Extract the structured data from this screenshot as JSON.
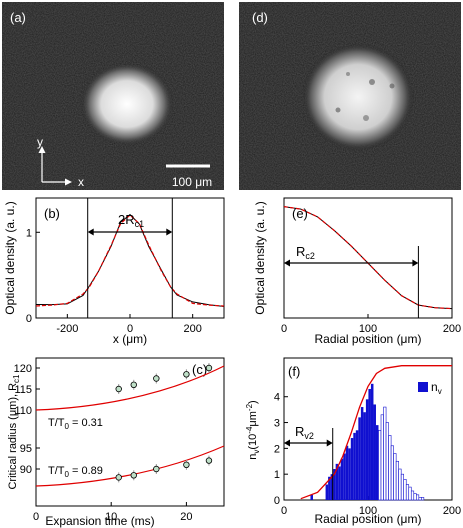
{
  "panel_a": {
    "tag": "(a)",
    "axis_y": "y",
    "axis_x": "x",
    "scalebar": "100 μm"
  },
  "panel_d": {
    "tag": "(d)"
  },
  "panel_b": {
    "tag": "(b)",
    "ylabel": "Optical density (a. u.)",
    "xlabel": "x (μm)",
    "marker": "2R",
    "marker_sub": "c1",
    "xticks": [
      "-200",
      "0",
      "200"
    ],
    "yticks": [
      "0",
      "1"
    ]
  },
  "panel_e": {
    "tag": "(e)",
    "ylabel": "Optical density (a. u.)",
    "xlabel": "Radial position (μm)",
    "marker": "R",
    "marker_sub": "c2",
    "xticks": [
      "0",
      "100",
      "200"
    ]
  },
  "panel_c": {
    "tag": "(c)",
    "ylabel": "Critical radius (μm), R",
    "ylabel_sub": "c1",
    "xlabel": "Expansion time (ms)",
    "xticks": [
      "0",
      "10",
      "20"
    ],
    "yticks": [
      "90",
      "95",
      "110",
      "115",
      "120"
    ],
    "note_top": "T/T",
    "note_top_sub": "0",
    "note_top_val": " = 0.31",
    "note_bot": "T/T",
    "note_bot_sub": "0",
    "note_bot_val": " = 0.89"
  },
  "panel_f": {
    "tag": "(f)",
    "ylabel": "n",
    "ylabel_sub": "v",
    "ylabel_unit": "(10",
    "ylabel_exp": "-4",
    "ylabel_unit2": "μm",
    "ylabel_exp2": "-2",
    "ylabel_close": ")",
    "xlabel": "Radial position (μm)",
    "xticks": [
      "0",
      "100",
      "200"
    ],
    "yticks": [
      "0",
      "1",
      "2",
      "3",
      "4"
    ],
    "marker": "R",
    "marker_sub": "v2",
    "legend": "n",
    "legend_sub": "v"
  },
  "chart_data": [
    {
      "type": "line",
      "panel": "b",
      "xlim": [
        -300,
        300
      ],
      "ylim": [
        0,
        1.4
      ],
      "x": [
        -300,
        -250,
        -200,
        -150,
        -130,
        -100,
        -60,
        -30,
        0,
        30,
        60,
        100,
        130,
        150,
        200,
        250,
        300
      ],
      "y": [
        0.14,
        0.15,
        0.17,
        0.28,
        0.36,
        0.55,
        0.85,
        1.1,
        1.2,
        1.1,
        0.85,
        0.55,
        0.36,
        0.28,
        0.17,
        0.15,
        0.14
      ],
      "markers_x": [
        -135,
        135
      ]
    },
    {
      "type": "line",
      "panel": "e",
      "xlim": [
        0,
        200
      ],
      "ylim": [
        0,
        1.4
      ],
      "x": [
        0,
        20,
        40,
        60,
        80,
        100,
        120,
        140,
        160,
        180,
        200
      ],
      "y": [
        1.3,
        1.27,
        1.18,
        1.02,
        0.84,
        0.64,
        0.44,
        0.26,
        0.15,
        0.12,
        0.11
      ],
      "marker_x": 160
    },
    {
      "type": "scatter",
      "panel": "c",
      "xlim": [
        0,
        25
      ],
      "series": [
        {
          "x": [
            11,
            13,
            16,
            20,
            23
          ],
          "y": [
            115,
            116,
            117.5,
            118.5,
            120
          ]
        },
        {
          "x": [
            11,
            13,
            16,
            20,
            23
          ],
          "y": [
            88,
            88.5,
            90,
            91,
            92
          ]
        }
      ]
    },
    {
      "type": "bar",
      "panel": "f",
      "xlim": [
        0,
        200
      ],
      "ylim": [
        0,
        5.5
      ],
      "bin_width": 3,
      "filled_x": [
        33,
        51,
        54,
        57,
        60,
        63,
        66,
        69,
        72,
        75,
        78,
        81,
        84,
        87,
        90,
        93,
        96,
        99,
        102,
        105,
        108,
        111
      ],
      "filled_y": [
        0.2,
        0.6,
        0.9,
        1.0,
        1.2,
        1.4,
        1.3,
        1.6,
        1.8,
        2.1,
        2.0,
        2.4,
        2.6,
        2.7,
        3.2,
        3.6,
        3.4,
        3.9,
        4.3,
        4.5,
        3.7,
        2.9
      ],
      "open_x": [
        114,
        117,
        120,
        123,
        126,
        129,
        132,
        135,
        138,
        141,
        144,
        147,
        150,
        153,
        156,
        159,
        162,
        165
      ],
      "open_y": [
        2.7,
        3.3,
        3.6,
        3.0,
        2.5,
        2.1,
        1.8,
        1.5,
        1.2,
        1.0,
        0.8,
        0.6,
        0.5,
        0.35,
        0.25,
        0.2,
        0.1,
        0.1
      ],
      "fit_x": [
        20,
        40,
        60,
        70,
        80,
        90,
        100,
        110,
        120,
        140,
        160,
        200
      ],
      "fit_y": [
        0.05,
        0.3,
        1.0,
        1.7,
        2.6,
        3.6,
        4.4,
        4.9,
        5.1,
        5.2,
        5.2,
        5.2
      ],
      "marker_x": 58
    }
  ]
}
